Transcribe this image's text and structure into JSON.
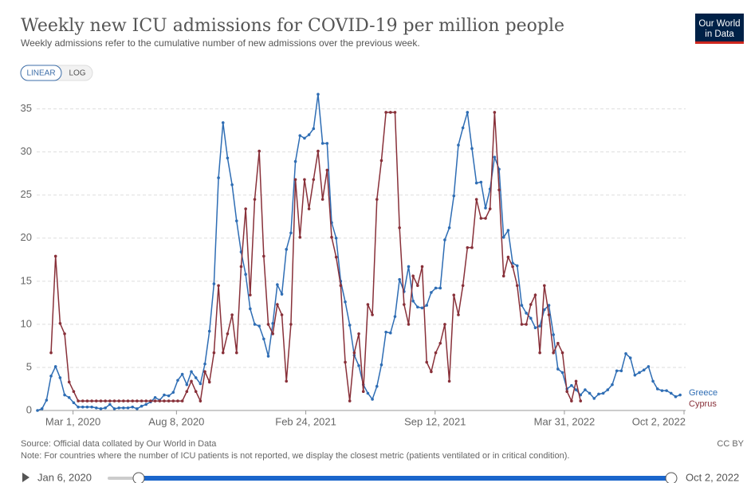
{
  "chart_data": {
    "type": "line",
    "title": "Weekly new ICU admissions for COVID-19 per million people",
    "subtitle": "Weekly admissions refer to the cumulative number of new admissions over the previous week.",
    "x": [
      "2020-01-06",
      "2020-01-13",
      "2020-01-20",
      "2020-01-27",
      "2020-02-03",
      "2020-02-10",
      "2020-02-17",
      "2020-02-24",
      "2020-03-02",
      "2020-03-09",
      "2020-03-16",
      "2020-03-23",
      "2020-03-30",
      "2020-04-06",
      "2020-04-13",
      "2020-04-20",
      "2020-04-27",
      "2020-05-04",
      "2020-05-11",
      "2020-05-18",
      "2020-05-25",
      "2020-06-01",
      "2020-06-08",
      "2020-06-15",
      "2020-06-22",
      "2020-06-29",
      "2020-07-06",
      "2020-07-13",
      "2020-07-20",
      "2020-07-27",
      "2020-08-03",
      "2020-08-10",
      "2020-08-17",
      "2020-08-24",
      "2020-08-31",
      "2020-09-07",
      "2020-09-14",
      "2020-09-21",
      "2020-09-28",
      "2020-10-05",
      "2020-10-12",
      "2020-10-19",
      "2020-10-26",
      "2020-11-02",
      "2020-11-09",
      "2020-11-16",
      "2020-11-23",
      "2020-11-30",
      "2020-12-07",
      "2020-12-14",
      "2020-12-21",
      "2020-12-28",
      "2021-01-04",
      "2021-01-11",
      "2021-01-18",
      "2021-01-25",
      "2021-02-01",
      "2021-02-08",
      "2021-02-15",
      "2021-02-22",
      "2021-03-01",
      "2021-03-08",
      "2021-03-15",
      "2021-03-22",
      "2021-03-29",
      "2021-04-05",
      "2021-04-12",
      "2021-04-19",
      "2021-04-26",
      "2021-05-03",
      "2021-05-10",
      "2021-05-17",
      "2021-05-24",
      "2021-05-31",
      "2021-06-07",
      "2021-06-14",
      "2021-06-21",
      "2021-06-28",
      "2021-07-05",
      "2021-07-12",
      "2021-07-19",
      "2021-07-26",
      "2021-08-02",
      "2021-08-09",
      "2021-08-16",
      "2021-08-23",
      "2021-08-30",
      "2021-09-06",
      "2021-09-13",
      "2021-09-20",
      "2021-09-27",
      "2021-10-04",
      "2021-10-11",
      "2021-10-18",
      "2021-10-25",
      "2021-11-01",
      "2021-11-08",
      "2021-11-15",
      "2021-11-22",
      "2021-11-29",
      "2021-12-06",
      "2021-12-13",
      "2021-12-20",
      "2021-12-27",
      "2022-01-03",
      "2022-01-10",
      "2022-01-17",
      "2022-01-24",
      "2022-01-31",
      "2022-02-07",
      "2022-02-14",
      "2022-02-21",
      "2022-02-28",
      "2022-03-07",
      "2022-03-14",
      "2022-03-21",
      "2022-03-28",
      "2022-04-04",
      "2022-04-11",
      "2022-04-18",
      "2022-04-25",
      "2022-05-02",
      "2022-05-09",
      "2022-05-16",
      "2022-05-23",
      "2022-05-30",
      "2022-06-06",
      "2022-06-13",
      "2022-06-20",
      "2022-06-27",
      "2022-07-04",
      "2022-07-11",
      "2022-07-18",
      "2022-07-25",
      "2022-08-01",
      "2022-08-08",
      "2022-08-15",
      "2022-08-22",
      "2022-08-29",
      "2022-09-05",
      "2022-09-12",
      "2022-09-19",
      "2022-09-26"
    ],
    "series": [
      {
        "name": "Greece",
        "color": "#2e6db4",
        "values": [
          0,
          0.2,
          1.2,
          4,
          5.1,
          3.8,
          1.8,
          1.5,
          0.9,
          0.4,
          0.4,
          0.4,
          0.4,
          0.3,
          0.2,
          0.3,
          0.7,
          0.2,
          0.3,
          0.3,
          0.3,
          0.4,
          0.2,
          0.5,
          0.7,
          1.0,
          1.5,
          1.2,
          1.8,
          1.7,
          2.1,
          3.5,
          4.2,
          3.0,
          4.5,
          3.8,
          3.1,
          5.4,
          9.2,
          14.7,
          27,
          33.4,
          29.3,
          26.2,
          22,
          18.4,
          15.8,
          11.8,
          10,
          9.8,
          8.3,
          6.3,
          10.1,
          14.6,
          13.5,
          18.7,
          20.6,
          28.9,
          31.9,
          31.6,
          32,
          32.7,
          36.7,
          31,
          31,
          21.8,
          20,
          15,
          12.6,
          9.9,
          6.4,
          5.2,
          3.0,
          2.0,
          1.3,
          2.8,
          5.3,
          9.1,
          9.0,
          10.9,
          15.2,
          13.8,
          16.7,
          12.7,
          12,
          11.9,
          12.2,
          13.7,
          14.2,
          14.2,
          19.8,
          21.2,
          24.9,
          30.8,
          32.8,
          34.6,
          30.4,
          26.4,
          26.5,
          23.5,
          25.7,
          29.4,
          28,
          20.1,
          20.9,
          17.1,
          16.8,
          12.2,
          11.3,
          10.7,
          9.6,
          9.8,
          11.7,
          12.2,
          8.8,
          4.8,
          4.4,
          2.5,
          2.9,
          2.4,
          1.8,
          2.4,
          2.0,
          1.4,
          1.9,
          2.0,
          2.4,
          3.0,
          4.6,
          4.6,
          6.6,
          6.1,
          4.1,
          4.4,
          4.7,
          5.1,
          3.4,
          2.5,
          2.3,
          2.3,
          2.0,
          1.6,
          1.8
        ]
      },
      {
        "name": "Cyprus",
        "color": "#883039",
        "values": [
          null,
          null,
          null,
          6.7,
          17.9,
          10.1,
          8.9,
          3.3,
          2.2,
          1.1,
          1.1,
          1.1,
          1.1,
          1.1,
          1.1,
          1.1,
          1.1,
          1.1,
          1.1,
          1.1,
          1.1,
          1.1,
          1.1,
          1.1,
          1.1,
          1.1,
          1.1,
          1.1,
          1.1,
          1.1,
          1.1,
          1.1,
          1.1,
          2.2,
          3.4,
          2.2,
          1.1,
          4.5,
          3.3,
          6.7,
          14.5,
          6.7,
          8.9,
          11.1,
          6.7,
          16.7,
          23.4,
          13.4,
          24.5,
          30.1,
          17.9,
          10,
          8.9,
          12.3,
          11.1,
          3.4,
          10.0,
          26.8,
          20.1,
          26.8,
          23.4,
          26.8,
          30.1,
          24.5,
          27.9,
          20.1,
          17.8,
          14.5,
          5.6,
          1.1,
          6.7,
          8.9,
          2.2,
          12.3,
          11.1,
          24.5,
          29,
          34.6,
          34.6,
          34.6,
          21.2,
          12.3,
          10,
          15.6,
          14.5,
          16.7,
          5.6,
          4.5,
          6.7,
          7.8,
          10.0,
          3.4,
          13.4,
          11.1,
          14.5,
          18.9,
          18.9,
          24.5,
          22.3,
          22.3,
          23.4,
          34.6,
          25.6,
          15.6,
          17.8,
          16.7,
          14.5,
          10.0,
          10.0,
          12.3,
          13.4,
          6.7,
          14.5,
          11.1,
          6.7,
          7.8,
          6.7,
          2.2,
          1.1,
          3.4,
          1.1,
          null,
          null,
          null,
          null,
          null,
          null,
          null,
          null,
          null,
          null,
          null,
          null,
          null,
          null,
          null,
          null,
          null,
          null,
          null,
          null,
          null,
          null
        ]
      }
    ],
    "xlim": [
      "2020-01-06",
      "2022-10-02"
    ],
    "xticks": [
      {
        "value": "2020-03-01",
        "label": "Mar 1, 2020"
      },
      {
        "value": "2020-08-08",
        "label": "Aug 8, 2020"
      },
      {
        "value": "2021-02-24",
        "label": "Feb 24, 2021"
      },
      {
        "value": "2021-09-12",
        "label": "Sep 12, 2021"
      },
      {
        "value": "2022-03-31",
        "label": "Mar 31, 2022"
      },
      {
        "value": "2022-10-02",
        "label": "Oct 2, 2022"
      }
    ],
    "ylim": [
      0,
      37
    ],
    "yticks": [
      0,
      5,
      10,
      15,
      20,
      25,
      30,
      35
    ],
    "grid": true
  },
  "controls": {
    "linear": "LINEAR",
    "log": "LOG"
  },
  "logo": [
    "Our World",
    "in Data"
  ],
  "footer": {
    "source": "Source: Official data collated by Our World in Data",
    "note": "Note: For countries where the number of ICU patients is not reported, we display the closest metric (patients ventilated or in critical condition).",
    "license": "CC BY"
  },
  "timeline": {
    "start": "Jan 6, 2020",
    "end": "Oct 2, 2022"
  }
}
